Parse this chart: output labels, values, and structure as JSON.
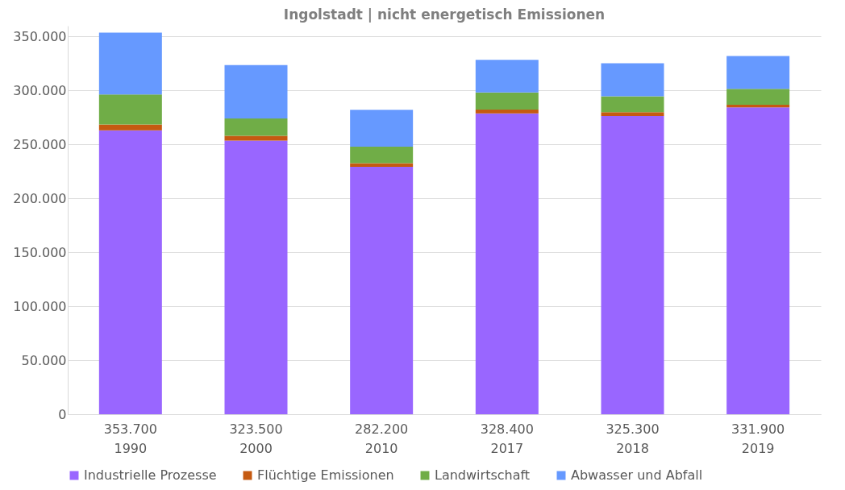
{
  "chart_data": {
    "type": "bar",
    "stacked": true,
    "title": "Ingolstadt  |  nicht energetisch Emissionen",
    "categories": [
      "1990",
      "2000",
      "2010",
      "2017",
      "2018",
      "2019"
    ],
    "totals": [
      "353.700",
      "323.500",
      "282.200",
      "328.400",
      "325.300",
      "331.900"
    ],
    "series": [
      {
        "name": "Industrielle Prozesse",
        "color": "#9966ff",
        "values": [
          263000,
          253600,
          229300,
          278700,
          276300,
          284400
        ]
      },
      {
        "name": "Flüchtige Emissionen",
        "color": "#c55a11",
        "values": [
          5500,
          4400,
          3300,
          3600,
          3600,
          2400
        ]
      },
      {
        "name": "Landwirtschaft",
        "color": "#70ad47",
        "values": [
          27900,
          16200,
          15300,
          15900,
          14700,
          14700
        ]
      },
      {
        "name": "Abwasser und Abfall",
        "color": "#6699ff",
        "values": [
          57300,
          49300,
          34300,
          30200,
          30700,
          30400
        ]
      }
    ],
    "ylim": [
      0,
      360000
    ],
    "yticks": [
      {
        "value": 0,
        "label": "0"
      },
      {
        "value": 50000,
        "label": "50.000"
      },
      {
        "value": 100000,
        "label": "100.000"
      },
      {
        "value": 150000,
        "label": "150.000"
      },
      {
        "value": 200000,
        "label": "200.000"
      },
      {
        "value": 250000,
        "label": "250.000"
      },
      {
        "value": 300000,
        "label": "300.000"
      },
      {
        "value": 350000,
        "label": "350.000"
      }
    ],
    "grid": "y",
    "legend": "bottom"
  }
}
